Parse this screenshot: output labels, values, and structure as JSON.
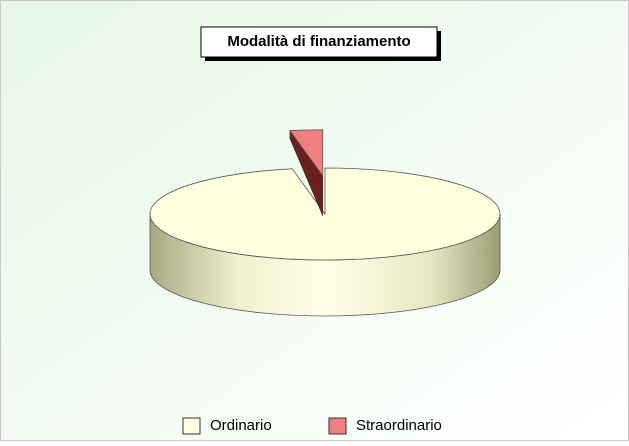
{
  "chart_data": {
    "type": "pie",
    "title": "Modalità di finanziamento",
    "categories": [
      "Ordinario",
      "Straordinario"
    ],
    "values": [
      97,
      3
    ],
    "colors": [
      "#ffffe0",
      "#f08080"
    ],
    "legend": "bottom"
  }
}
